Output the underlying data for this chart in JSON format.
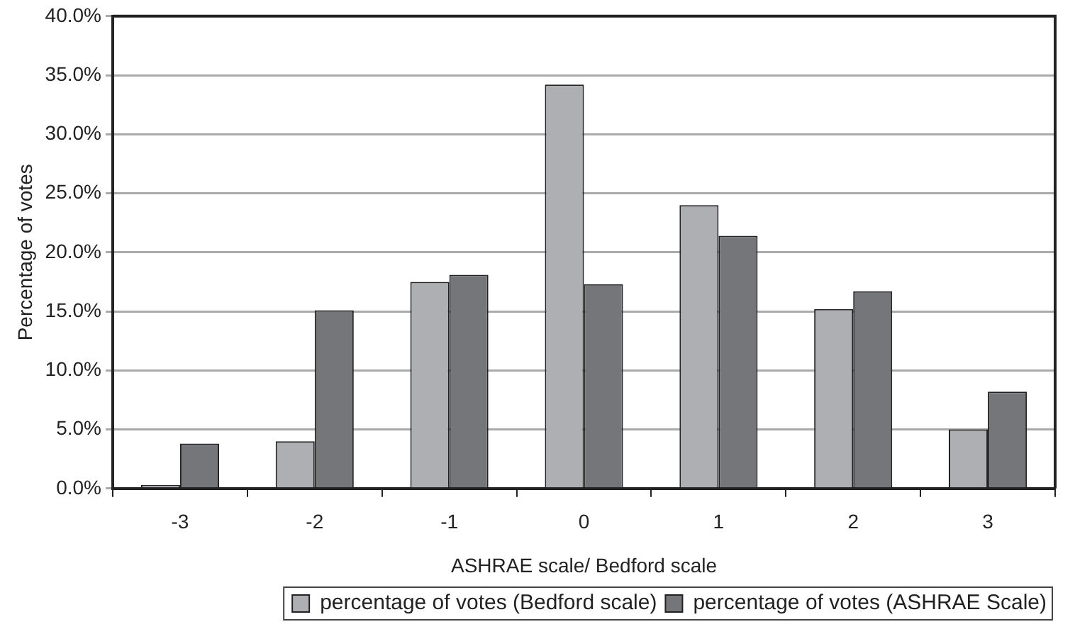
{
  "chart_data": {
    "type": "bar",
    "xlabel": "ASHRAE scale/ Bedford scale",
    "ylabel": "Percentage of votes",
    "categories": [
      "-3",
      "-2",
      "-1",
      "0",
      "1",
      "2",
      "3"
    ],
    "series": [
      {
        "name": "percentage of votes (Bedford scale)",
        "color": "#aeafb2",
        "values": [
          0.3,
          4.0,
          17.5,
          34.2,
          24.0,
          15.2,
          5.0
        ]
      },
      {
        "name": "percentage of votes (ASHRAE Scale)",
        "color": "#75767a",
        "values": [
          3.8,
          15.1,
          18.1,
          17.3,
          21.4,
          16.7,
          8.2
        ]
      }
    ],
    "ylim": [
      0,
      40
    ],
    "yticks": [
      {
        "value": 0,
        "label": "0.0%"
      },
      {
        "value": 5,
        "label": "5.0%"
      },
      {
        "value": 10,
        "label": "10.0%"
      },
      {
        "value": 15,
        "label": "15.0%"
      },
      {
        "value": 20,
        "label": "20.0%"
      },
      {
        "value": 25,
        "label": "25.0%"
      },
      {
        "value": 30,
        "label": "30.0%"
      },
      {
        "value": 35,
        "label": "35.0%"
      },
      {
        "value": 40,
        "label": "40.0%"
      }
    ],
    "grid": "y",
    "legend": "bottom"
  }
}
